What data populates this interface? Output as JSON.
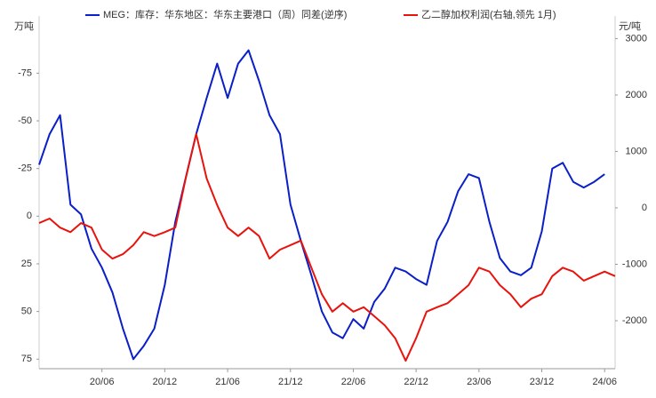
{
  "chart_data": {
    "type": "line",
    "y_label": "万吨",
    "y2_label": "元/吨",
    "categories": [
      null,
      null,
      null,
      null,
      null,
      null,
      "20/06",
      null,
      null,
      null,
      null,
      null,
      "20/12",
      null,
      null,
      null,
      null,
      null,
      "21/06",
      null,
      null,
      null,
      null,
      null,
      "21/12",
      null,
      null,
      null,
      null,
      null,
      "22/06",
      null,
      null,
      null,
      null,
      null,
      "22/12",
      null,
      null,
      null,
      null,
      null,
      "23/06",
      null,
      null,
      null,
      null,
      null,
      "23/12",
      null,
      null,
      null,
      null,
      null,
      "24/06",
      null
    ],
    "series": [
      {
        "name": "MEG：库存：华东地区：华东主要港口（周）同差(逆序)",
        "color": "#0a1fc8",
        "axis": "y",
        "values": [
          -27,
          -43,
          -53,
          -6,
          -1,
          17,
          27,
          40,
          59,
          75,
          68,
          59,
          36,
          3,
          -20,
          -43,
          -62,
          -80,
          -62,
          -80,
          -87,
          -71,
          -53,
          -43,
          -6,
          13,
          31,
          50,
          61,
          64,
          54,
          59,
          45,
          38,
          27,
          29,
          33,
          36,
          13,
          3,
          -13,
          -22,
          -20,
          3,
          22,
          29,
          31,
          27,
          8,
          -25,
          -28,
          -18,
          -15,
          -18,
          -22,
          null
        ]
      },
      {
        "name": "乙二醇加权利润(右轴,领先 1月)",
        "color": "#e8130c",
        "axis": "y2",
        "values": [
          -270,
          -190,
          -350,
          -430,
          -270,
          -350,
          -740,
          -900,
          -820,
          -660,
          -430,
          -500,
          -430,
          -350,
          520,
          1310,
          520,
          50,
          -350,
          -500,
          -350,
          -500,
          -900,
          -740,
          -660,
          -580,
          -1060,
          -1530,
          -1840,
          -1690,
          -1840,
          -1760,
          -1920,
          -2080,
          -2310,
          -2710,
          -2310,
          -1840,
          -1760,
          -1690,
          -1530,
          -1370,
          -1060,
          -1130,
          -1370,
          -1530,
          -1760,
          -1610,
          -1530,
          -1210,
          -1060,
          -1130,
          -1290,
          -1210,
          -1130,
          -1210
        ]
      }
    ],
    "ylim": [
      -105,
      80
    ],
    "y_inverted": true,
    "yticks": [
      -75,
      -50,
      -25,
      0,
      25,
      50,
      75
    ],
    "y2lim": [
      -2850,
      3400
    ],
    "y2ticks": [
      3000,
      2000,
      1000,
      0,
      -1000,
      -2000
    ],
    "grid": false,
    "legend": "top"
  }
}
